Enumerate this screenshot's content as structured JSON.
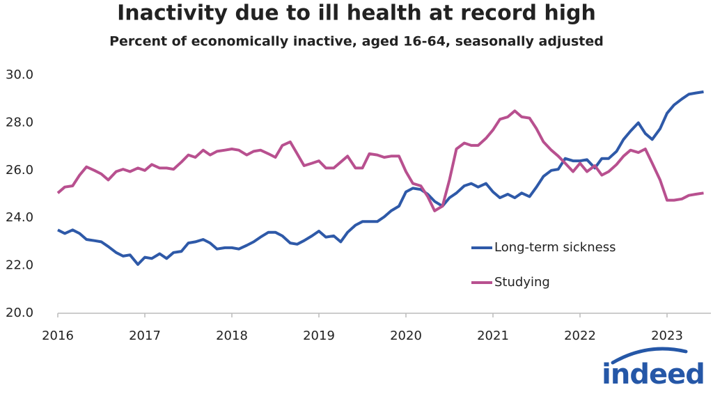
{
  "chart_data": {
    "type": "line",
    "title": "Inactivity due to ill health at record high",
    "subtitle": "Percent of economically inactive, aged 16-64, seasonally adjusted",
    "brand": "indeed",
    "x": [
      2016,
      2016.08,
      2016.17,
      2016.25,
      2016.33,
      2016.42,
      2016.5,
      2016.58,
      2016.67,
      2016.75,
      2016.83,
      2016.92,
      2017,
      2017.08,
      2017.17,
      2017.25,
      2017.33,
      2017.42,
      2017.5,
      2017.58,
      2017.67,
      2017.75,
      2017.83,
      2017.92,
      2018,
      2018.08,
      2018.17,
      2018.25,
      2018.33,
      2018.42,
      2018.5,
      2018.58,
      2018.67,
      2018.75,
      2018.83,
      2018.92,
      2019,
      2019.08,
      2019.17,
      2019.25,
      2019.33,
      2019.42,
      2019.5,
      2019.58,
      2019.67,
      2019.75,
      2019.83,
      2019.92,
      2020,
      2020.08,
      2020.17,
      2020.25,
      2020.33,
      2020.42,
      2020.5,
      2020.58,
      2020.67,
      2020.75,
      2020.83,
      2020.92,
      2021,
      2021.08,
      2021.17,
      2021.25,
      2021.33,
      2021.42,
      2021.5,
      2021.58,
      2021.67,
      2021.75,
      2021.83,
      2021.92,
      2022,
      2022.08,
      2022.17,
      2022.25,
      2022.33,
      2022.42,
      2022.5,
      2022.58,
      2022.67,
      2022.75,
      2022.83,
      2022.92,
      2023,
      2023.08,
      2023.17,
      2023.25,
      2023.33,
      2023.42
    ],
    "series": [
      {
        "name": "Long-term sickness",
        "color": "#2e59a8",
        "values": [
          23.5,
          23.35,
          23.5,
          23.35,
          23.1,
          23.05,
          23.0,
          22.8,
          22.55,
          22.4,
          22.45,
          22.05,
          22.35,
          22.3,
          22.5,
          22.3,
          22.55,
          22.6,
          22.95,
          23.0,
          23.1,
          22.95,
          22.7,
          22.75,
          22.75,
          22.7,
          22.85,
          23.0,
          23.2,
          23.4,
          23.4,
          23.25,
          22.95,
          22.9,
          23.05,
          23.25,
          23.45,
          23.2,
          23.25,
          23.0,
          23.4,
          23.7,
          23.85,
          23.85,
          23.85,
          24.05,
          24.3,
          24.5,
          25.1,
          25.25,
          25.2,
          25.0,
          24.7,
          24.5,
          24.85,
          25.05,
          25.35,
          25.45,
          25.3,
          25.45,
          25.1,
          24.85,
          25.0,
          24.85,
          25.05,
          24.9,
          25.3,
          25.75,
          26.0,
          26.05,
          26.5,
          26.4,
          26.4,
          26.45,
          26.1,
          26.5,
          26.5,
          26.8,
          27.3,
          27.65,
          28.0,
          27.55,
          27.3,
          27.75,
          28.4,
          28.75,
          29.0,
          29.2,
          29.25,
          29.3
        ]
      },
      {
        "name": "Studying",
        "color": "#b8508f",
        "values": [
          25.05,
          25.3,
          25.35,
          25.8,
          26.15,
          26.0,
          25.85,
          25.6,
          25.95,
          26.05,
          25.95,
          26.1,
          26.0,
          26.25,
          26.1,
          26.1,
          26.05,
          26.35,
          26.65,
          26.55,
          26.85,
          26.65,
          26.8,
          26.85,
          26.9,
          26.85,
          26.65,
          26.8,
          26.85,
          26.7,
          26.55,
          27.05,
          27.2,
          26.7,
          26.2,
          26.3,
          26.4,
          26.1,
          26.1,
          26.35,
          26.6,
          26.1,
          26.1,
          26.7,
          26.65,
          26.55,
          26.6,
          26.6,
          25.95,
          25.45,
          25.35,
          24.9,
          24.3,
          24.5,
          25.6,
          26.9,
          27.15,
          27.05,
          27.05,
          27.35,
          27.7,
          28.15,
          28.25,
          28.5,
          28.25,
          28.2,
          27.75,
          27.2,
          26.85,
          26.6,
          26.3,
          25.95,
          26.3,
          25.95,
          26.2,
          25.8,
          25.95,
          26.25,
          26.6,
          26.85,
          26.75,
          26.9,
          26.3,
          25.6,
          24.75,
          24.75,
          24.8,
          24.95,
          25.0,
          25.05
        ]
      }
    ],
    "xlim": [
      2016,
      2023.5
    ],
    "xticks": [
      2016,
      2017,
      2018,
      2019,
      2020,
      2021,
      2022,
      2023
    ],
    "ylim": [
      20,
      30
    ],
    "yticks": [
      {
        "value": 20,
        "label": "20.0"
      },
      {
        "value": 22,
        "label": "22.0"
      },
      {
        "value": 24,
        "label": "24.0"
      },
      {
        "value": 26,
        "label": "26.0"
      },
      {
        "value": 28,
        "label": "28.0"
      },
      {
        "value": 30,
        "label": "30.0"
      }
    ],
    "grid": false,
    "legend": "lower right"
  }
}
